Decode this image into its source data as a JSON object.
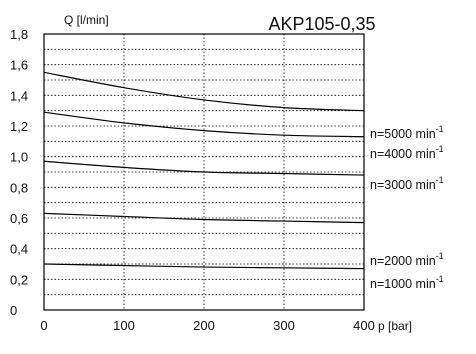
{
  "chart_data": {
    "type": "line",
    "title": "AKP105-0,35",
    "ylabel": "Q [l/min]",
    "xlabel": "p [bar]",
    "xlim": [
      0,
      400
    ],
    "ylim": [
      0,
      1.8
    ],
    "x_ticks": [
      0,
      100,
      200,
      300,
      400
    ],
    "x_tick_labels": [
      "0",
      "100",
      "200",
      "300",
      "400"
    ],
    "y_ticks": [
      0,
      0.2,
      0.4,
      0.6,
      0.8,
      1.0,
      1.2,
      1.4,
      1.6,
      1.8
    ],
    "y_tick_labels": [
      "0",
      "0,2",
      "0,4",
      "0,6",
      "0,8",
      "1,0",
      "1,2",
      "1,4",
      "1,6",
      "1,8"
    ],
    "grid": true,
    "series": [
      {
        "name": "n=5000 min",
        "unit_exponent": "-1",
        "x": [
          0,
          100,
          200,
          300,
          400
        ],
        "y": [
          1.55,
          1.45,
          1.37,
          1.32,
          1.3
        ]
      },
      {
        "name": "n=4000 min",
        "unit_exponent": "-1",
        "x": [
          0,
          100,
          200,
          300,
          400
        ],
        "y": [
          1.29,
          1.22,
          1.17,
          1.14,
          1.13
        ]
      },
      {
        "name": "n=3000 min",
        "unit_exponent": "-1",
        "x": [
          0,
          100,
          200,
          300,
          400
        ],
        "y": [
          0.97,
          0.93,
          0.9,
          0.89,
          0.88
        ]
      },
      {
        "name": "n=2000 min",
        "unit_exponent": "-1",
        "x": [
          0,
          100,
          200,
          300,
          400
        ],
        "y": [
          0.63,
          0.61,
          0.59,
          0.58,
          0.57
        ]
      },
      {
        "name": "n=1000 min",
        "unit_exponent": "-1",
        "x": [
          0,
          100,
          200,
          300,
          400
        ],
        "y": [
          0.3,
          0.29,
          0.28,
          0.275,
          0.27
        ]
      }
    ]
  }
}
